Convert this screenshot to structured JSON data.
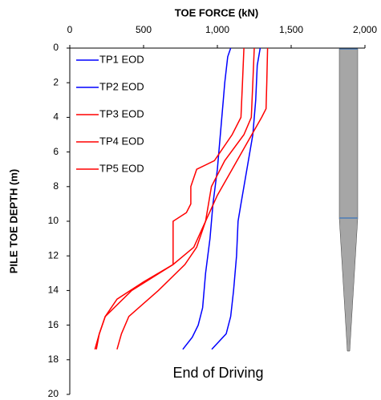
{
  "chart_data": {
    "type": "line",
    "title": "TOE FORCE (kN)",
    "y_label": "PILE TOE DEPTH (m)",
    "annotation": "End of Driving",
    "xlim": [
      0,
      2000
    ],
    "xticks": [
      0,
      500,
      {
        "value": 1000,
        "label": "1,000"
      },
      {
        "value": 1500,
        "label": "1,500"
      },
      {
        "value": 2000,
        "label": "2,000"
      }
    ],
    "ylim": [
      0,
      20
    ],
    "yticks": [
      0,
      2,
      4,
      6,
      8,
      10,
      12,
      14,
      16,
      18,
      20
    ],
    "y_inverted": true,
    "legend": "top-left",
    "series": [
      {
        "name": "TP1 EOD",
        "color": "#0000ff",
        "depth": [
          0,
          0.5,
          2,
          3,
          5,
          7,
          9,
          11,
          13,
          15,
          16,
          16.7,
          17.4
        ],
        "values": [
          1090,
          1070,
          1050,
          1040,
          1020,
          1000,
          970,
          950,
          920,
          900,
          870,
          830,
          766
        ]
      },
      {
        "name": "TP2 EOD",
        "color": "#0000ff",
        "depth": [
          0,
          1,
          3,
          5,
          7,
          9,
          10,
          12,
          14,
          15.5,
          16.5,
          17.4
        ],
        "values": [
          1290,
          1270,
          1260,
          1240,
          1200,
          1160,
          1140,
          1130,
          1110,
          1090,
          1060,
          962
        ]
      },
      {
        "name": "TP3 EOD",
        "color": "#ff0000",
        "depth": [
          0,
          2,
          3.5,
          4,
          5.5,
          7,
          8.5,
          10,
          11.5,
          12.5,
          14,
          15.5,
          16.5,
          17.4
        ],
        "values": [
          1340,
          1335,
          1330,
          1300,
          1200,
          1100,
          1000,
          920,
          860,
          780,
          600,
          400,
          350,
          320
        ]
      },
      {
        "name": "TP4 EOD",
        "color": "#ff0000",
        "depth": [
          0,
          2,
          4,
          5,
          6.5,
          7,
          8,
          9,
          9.5,
          10,
          12,
          12.5,
          13.5,
          14.5,
          15.5,
          16.5,
          17.4
        ],
        "values": [
          1180,
          1170,
          1160,
          1100,
          980,
          860,
          820,
          820,
          790,
          700,
          700,
          700,
          500,
          320,
          240,
          200,
          180
        ]
      },
      {
        "name": "TP5 EOD",
        "color": "#ff0000",
        "depth": [
          0,
          2,
          4,
          5,
          6.5,
          8,
          10,
          11.5,
          12.5,
          14,
          15.5,
          16.5,
          17.4
        ],
        "values": [
          1250,
          1240,
          1230,
          1180,
          1050,
          960,
          920,
          840,
          700,
          420,
          240,
          200,
          170
        ]
      }
    ]
  }
}
